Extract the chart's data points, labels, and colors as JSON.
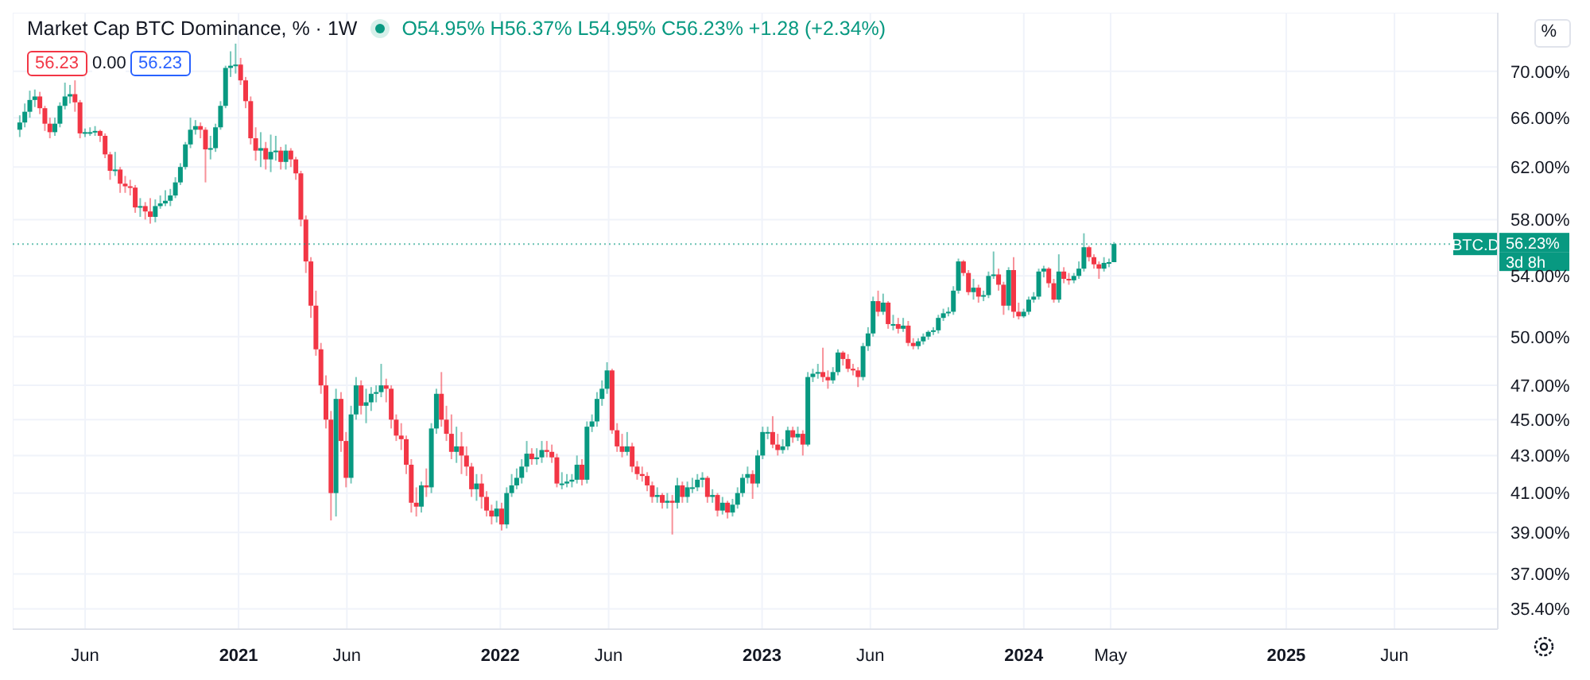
{
  "chart_data": {
    "type": "candlestick",
    "title": "Market Cap BTC Dominance, % · 1W",
    "subtitle": "O54.95% H56.37% L54.95% C56.23% +1.28 (+2.34%)",
    "annotations": [
      "56.23",
      "0.00",
      "56.23",
      "%",
      "56.23%",
      "3d 8h"
    ],
    "x": [
      "2020-03-02",
      "2020-03-09",
      "2020-03-16",
      "2020-03-23",
      "2020-03-30",
      "2020-04-06",
      "2020-04-13",
      "2020-04-20",
      "2020-04-27",
      "2020-05-04",
      "2020-05-11",
      "2020-05-18",
      "2020-05-25",
      "2020-06-01",
      "2020-06-08",
      "2020-06-15",
      "2020-06-22",
      "2020-06-29",
      "2020-07-06",
      "2020-07-13",
      "2020-07-20",
      "2020-07-27",
      "2020-08-03",
      "2020-08-10",
      "2020-08-17",
      "2020-08-24",
      "2020-08-31",
      "2020-09-07",
      "2020-09-14",
      "2020-09-21",
      "2020-09-28",
      "2020-10-05",
      "2020-10-12",
      "2020-10-19",
      "2020-10-26",
      "2020-11-02",
      "2020-11-09",
      "2020-11-16",
      "2020-11-23",
      "2020-11-30",
      "2020-12-07",
      "2020-12-14",
      "2020-12-21",
      "2020-12-28",
      "2021-01-04",
      "2021-01-11",
      "2021-01-18",
      "2021-01-25",
      "2021-02-01",
      "2021-02-08",
      "2021-02-15",
      "2021-02-22",
      "2021-03-01",
      "2021-03-08",
      "2021-03-15",
      "2021-03-22",
      "2021-03-29",
      "2021-04-05",
      "2021-04-12",
      "2021-04-19",
      "2021-04-26",
      "2021-05-03",
      "2021-05-10",
      "2021-05-17",
      "2021-05-24",
      "2021-05-31",
      "2021-06-07",
      "2021-06-14",
      "2021-06-21",
      "2021-06-28",
      "2021-07-05",
      "2021-07-12",
      "2021-07-19",
      "2021-07-26",
      "2021-08-02",
      "2021-08-09",
      "2021-08-16",
      "2021-08-23",
      "2021-08-30",
      "2021-09-06",
      "2021-09-13",
      "2021-09-20",
      "2021-09-27",
      "2021-10-04",
      "2021-10-11",
      "2021-10-18",
      "2021-10-25",
      "2021-11-01",
      "2021-11-08",
      "2021-11-15",
      "2021-11-22",
      "2021-11-29",
      "2021-12-06",
      "2021-12-13",
      "2021-12-20",
      "2021-12-27",
      "2022-01-03",
      "2022-01-10",
      "2022-01-17",
      "2022-01-24",
      "2022-01-31",
      "2022-02-07",
      "2022-02-14",
      "2022-02-21",
      "2022-02-28",
      "2022-03-07",
      "2022-03-14",
      "2022-03-21",
      "2022-03-28",
      "2022-04-04",
      "2022-04-11",
      "2022-04-18",
      "2022-04-25",
      "2022-05-02",
      "2022-05-09",
      "2022-05-16",
      "2022-05-23",
      "2022-05-30",
      "2022-06-06",
      "2022-06-13",
      "2022-06-20",
      "2022-06-27",
      "2022-07-04",
      "2022-07-11",
      "2022-07-18",
      "2022-07-25",
      "2022-08-01",
      "2022-08-08",
      "2022-08-15",
      "2022-08-22",
      "2022-08-29",
      "2022-09-05",
      "2022-09-12",
      "2022-09-19",
      "2022-09-26",
      "2022-10-03",
      "2022-10-10",
      "2022-10-17",
      "2022-10-24",
      "2022-10-31",
      "2022-11-07",
      "2022-11-14",
      "2022-11-21",
      "2022-11-28",
      "2022-12-05",
      "2022-12-12",
      "2022-12-19",
      "2022-12-26",
      "2023-01-02",
      "2023-01-09",
      "2023-01-16",
      "2023-01-23",
      "2023-01-30",
      "2023-02-06",
      "2023-02-13",
      "2023-02-20",
      "2023-02-27",
      "2023-03-06",
      "2023-03-13",
      "2023-03-20",
      "2023-03-27",
      "2023-04-03",
      "2023-04-10",
      "2023-04-17",
      "2023-04-24",
      "2023-05-01",
      "2023-05-08",
      "2023-05-15",
      "2023-05-22",
      "2023-05-29",
      "2023-06-05",
      "2023-06-12",
      "2023-06-19",
      "2023-06-26",
      "2023-07-03",
      "2023-07-10",
      "2023-07-17",
      "2023-07-24",
      "2023-07-31",
      "2023-08-07",
      "2023-08-14",
      "2023-08-21",
      "2023-08-28",
      "2023-09-04",
      "2023-09-11",
      "2023-09-18",
      "2023-09-25",
      "2023-10-02",
      "2023-10-09",
      "2023-10-16",
      "2023-10-23",
      "2023-10-30",
      "2023-11-06",
      "2023-11-13",
      "2023-11-20",
      "2023-11-27",
      "2023-12-04",
      "2023-12-11",
      "2023-12-18",
      "2023-12-25",
      "2024-01-01",
      "2024-01-08",
      "2024-01-15",
      "2024-01-22",
      "2024-01-29",
      "2024-02-05",
      "2024-02-12",
      "2024-02-19",
      "2024-02-26",
      "2024-03-04",
      "2024-03-11",
      "2024-03-18",
      "2024-03-25",
      "2024-04-01",
      "2024-04-08",
      "2024-04-15",
      "2024-04-22",
      "2024-04-29",
      "2024-05-06"
    ],
    "ohlc": [
      [
        65.0,
        66.2,
        64.4,
        65.6
      ],
      [
        65.6,
        67.2,
        65.2,
        66.5
      ],
      [
        66.5,
        68.3,
        66.0,
        67.5
      ],
      [
        67.5,
        68.4,
        66.9,
        67.8
      ],
      [
        67.8,
        68.2,
        66.3,
        66.8
      ],
      [
        66.8,
        67.0,
        64.9,
        65.5
      ],
      [
        65.5,
        66.0,
        64.3,
        64.8
      ],
      [
        64.8,
        66.0,
        64.5,
        65.5
      ],
      [
        65.5,
        67.3,
        65.2,
        67.0
      ],
      [
        67.0,
        69.0,
        66.7,
        67.8
      ],
      [
        67.8,
        68.8,
        67.2,
        68.0
      ],
      [
        68.0,
        69.2,
        66.5,
        67.3
      ],
      [
        67.3,
        67.5,
        64.3,
        64.7
      ],
      [
        64.7,
        65.1,
        64.4,
        64.8
      ],
      [
        64.8,
        65.2,
        64.5,
        64.8
      ],
      [
        64.8,
        65.3,
        64.5,
        64.9
      ],
      [
        64.9,
        65.0,
        64.0,
        64.5
      ],
      [
        64.5,
        64.7,
        62.7,
        63.0
      ],
      [
        63.0,
        63.2,
        61.0,
        61.7
      ],
      [
        61.7,
        63.2,
        61.3,
        61.8
      ],
      [
        61.8,
        62.0,
        60.0,
        60.7
      ],
      [
        60.7,
        61.3,
        60.0,
        60.5
      ],
      [
        60.5,
        61.0,
        59.8,
        60.4
      ],
      [
        60.4,
        60.6,
        58.5,
        58.9
      ],
      [
        58.9,
        59.6,
        58.2,
        59.0
      ],
      [
        59.0,
        59.3,
        58.0,
        58.6
      ],
      [
        58.6,
        59.6,
        57.7,
        58.2
      ],
      [
        58.2,
        59.5,
        57.8,
        59.0
      ],
      [
        59.0,
        59.8,
        58.8,
        59.2
      ],
      [
        59.2,
        60.2,
        59.0,
        59.4
      ],
      [
        59.4,
        60.3,
        59.0,
        59.8
      ],
      [
        59.8,
        61.2,
        59.6,
        60.8
      ],
      [
        60.8,
        62.3,
        60.6,
        62.0
      ],
      [
        62.0,
        64.0,
        61.8,
        63.8
      ],
      [
        63.8,
        66.0,
        63.5,
        65.0
      ],
      [
        65.0,
        65.8,
        64.6,
        65.3
      ],
      [
        65.3,
        65.6,
        64.3,
        65.0
      ],
      [
        65.0,
        65.2,
        60.8,
        63.4
      ],
      [
        63.4,
        64.5,
        62.6,
        63.5
      ],
      [
        63.5,
        65.5,
        63.2,
        65.2
      ],
      [
        65.2,
        67.4,
        65.0,
        67.0
      ],
      [
        67.0,
        70.5,
        66.8,
        70.3
      ],
      [
        70.3,
        71.8,
        69.5,
        70.5
      ],
      [
        70.5,
        72.5,
        69.8,
        70.6
      ],
      [
        70.6,
        71.2,
        68.8,
        69.2
      ],
      [
        69.2,
        69.5,
        66.8,
        67.4
      ],
      [
        67.4,
        67.8,
        63.8,
        64.3
      ],
      [
        64.3,
        65.2,
        62.5,
        63.3
      ],
      [
        63.3,
        64.8,
        62.0,
        63.5
      ],
      [
        63.5,
        64.0,
        61.8,
        62.6
      ],
      [
        62.6,
        64.6,
        61.6,
        63.2
      ],
      [
        63.2,
        64.5,
        62.5,
        63.3
      ],
      [
        63.3,
        63.6,
        61.8,
        62.4
      ],
      [
        62.4,
        63.8,
        61.8,
        63.3
      ],
      [
        63.3,
        63.5,
        62.0,
        62.6
      ],
      [
        62.6,
        62.8,
        61.0,
        61.5
      ],
      [
        61.5,
        61.7,
        57.5,
        58.0
      ],
      [
        58.0,
        58.3,
        54.2,
        55.0
      ],
      [
        55.0,
        55.3,
        51.2,
        52.0
      ],
      [
        52.0,
        53.0,
        48.8,
        49.2
      ],
      [
        49.2,
        49.6,
        46.5,
        47.0
      ],
      [
        47.0,
        47.6,
        44.5,
        45.0
      ],
      [
        45.0,
        45.5,
        39.6,
        41.0
      ],
      [
        41.0,
        46.8,
        39.8,
        46.2
      ],
      [
        46.2,
        46.6,
        43.2,
        43.8
      ],
      [
        43.8,
        44.3,
        41.3,
        41.8
      ],
      [
        41.8,
        45.8,
        41.5,
        45.3
      ],
      [
        45.3,
        47.5,
        45.0,
        47.0
      ],
      [
        47.0,
        47.3,
        45.3,
        45.8
      ],
      [
        45.8,
        46.8,
        44.8,
        46.0
      ],
      [
        46.0,
        46.9,
        45.5,
        46.5
      ],
      [
        46.5,
        47.0,
        46.0,
        46.6
      ],
      [
        46.6,
        48.3,
        46.3,
        47.0
      ],
      [
        47.0,
        47.4,
        46.0,
        46.8
      ],
      [
        46.8,
        47.0,
        44.5,
        45.0
      ],
      [
        45.0,
        45.3,
        43.8,
        44.1
      ],
      [
        44.1,
        44.8,
        43.3,
        43.9
      ],
      [
        43.9,
        44.1,
        42.0,
        42.5
      ],
      [
        42.5,
        42.8,
        40.0,
        40.5
      ],
      [
        40.5,
        41.3,
        39.8,
        40.3
      ],
      [
        40.3,
        41.6,
        40.0,
        41.4
      ],
      [
        41.4,
        42.3,
        40.8,
        41.3
      ],
      [
        41.3,
        44.8,
        41.0,
        44.5
      ],
      [
        44.5,
        46.8,
        44.2,
        46.5
      ],
      [
        46.5,
        47.8,
        44.6,
        45.0
      ],
      [
        45.0,
        45.8,
        43.8,
        44.2
      ],
      [
        44.2,
        45.3,
        42.8,
        43.2
      ],
      [
        43.2,
        44.6,
        42.6,
        43.5
      ],
      [
        43.5,
        44.3,
        42.0,
        43.0
      ],
      [
        43.0,
        43.5,
        41.9,
        42.4
      ],
      [
        42.4,
        42.6,
        40.8,
        41.2
      ],
      [
        41.2,
        42.0,
        40.6,
        41.5
      ],
      [
        41.5,
        42.0,
        40.2,
        40.8
      ],
      [
        40.8,
        41.1,
        39.8,
        40.1
      ],
      [
        40.1,
        40.4,
        39.4,
        39.8
      ],
      [
        39.8,
        40.6,
        39.5,
        40.2
      ],
      [
        40.2,
        40.5,
        39.1,
        39.4
      ],
      [
        39.4,
        41.3,
        39.2,
        41.0
      ],
      [
        41.0,
        42.0,
        40.8,
        41.4
      ],
      [
        41.4,
        42.3,
        41.2,
        41.8
      ],
      [
        41.8,
        42.8,
        41.5,
        42.4
      ],
      [
        42.4,
        43.8,
        42.1,
        43.1
      ],
      [
        43.1,
        43.4,
        42.5,
        42.8
      ],
      [
        42.8,
        43.4,
        42.5,
        42.9
      ],
      [
        42.9,
        43.8,
        42.6,
        43.3
      ],
      [
        43.3,
        43.8,
        42.9,
        43.2
      ],
      [
        43.2,
        43.6,
        42.6,
        42.9
      ],
      [
        42.9,
        43.1,
        41.3,
        41.5
      ],
      [
        41.5,
        42.1,
        41.2,
        41.5
      ],
      [
        41.5,
        42.0,
        41.3,
        41.6
      ],
      [
        41.6,
        42.0,
        41.3,
        41.7
      ],
      [
        41.7,
        43.0,
        41.5,
        42.5
      ],
      [
        42.5,
        42.8,
        41.4,
        41.7
      ],
      [
        41.7,
        44.9,
        41.5,
        44.6
      ],
      [
        44.6,
        45.3,
        44.3,
        44.9
      ],
      [
        44.9,
        46.6,
        44.6,
        46.2
      ],
      [
        46.2,
        47.3,
        45.8,
        46.8
      ],
      [
        46.8,
        48.4,
        46.5,
        47.9
      ],
      [
        47.9,
        48.0,
        44.2,
        44.4
      ],
      [
        44.4,
        44.8,
        43.2,
        43.5
      ],
      [
        43.5,
        44.2,
        42.9,
        43.2
      ],
      [
        43.2,
        44.3,
        43.0,
        43.5
      ],
      [
        43.5,
        43.7,
        42.1,
        42.4
      ],
      [
        42.4,
        42.7,
        41.7,
        42.0
      ],
      [
        42.0,
        42.4,
        41.6,
        41.9
      ],
      [
        41.9,
        42.1,
        41.1,
        41.4
      ],
      [
        41.4,
        41.6,
        40.5,
        40.8
      ],
      [
        40.8,
        41.3,
        40.5,
        40.9
      ],
      [
        40.9,
        41.0,
        40.2,
        40.5
      ],
      [
        40.5,
        41.0,
        40.2,
        40.6
      ],
      [
        40.6,
        40.9,
        38.9,
        40.5
      ],
      [
        40.5,
        41.8,
        40.2,
        41.4
      ],
      [
        41.4,
        41.6,
        40.5,
        40.8
      ],
      [
        40.8,
        41.6,
        40.5,
        41.3
      ],
      [
        41.3,
        41.8,
        41.0,
        41.3
      ],
      [
        41.3,
        42.0,
        41.1,
        41.7
      ],
      [
        41.7,
        42.1,
        41.3,
        41.8
      ],
      [
        41.8,
        41.9,
        40.5,
        40.8
      ],
      [
        40.8,
        41.2,
        40.5,
        40.9
      ],
      [
        40.9,
        41.0,
        39.8,
        40.1
      ],
      [
        40.1,
        40.8,
        39.9,
        40.5
      ],
      [
        40.5,
        40.6,
        39.7,
        40.0
      ],
      [
        40.0,
        40.7,
        39.8,
        40.4
      ],
      [
        40.4,
        41.3,
        40.2,
        41.0
      ],
      [
        41.0,
        42.0,
        40.8,
        41.8
      ],
      [
        41.8,
        42.4,
        41.5,
        42.0
      ],
      [
        42.0,
        42.2,
        40.7,
        41.5
      ],
      [
        41.5,
        43.3,
        41.3,
        43.0
      ],
      [
        43.0,
        44.6,
        42.8,
        44.3
      ],
      [
        44.3,
        44.6,
        43.9,
        44.3
      ],
      [
        44.3,
        45.2,
        43.4,
        43.6
      ],
      [
        43.6,
        44.2,
        43.0,
        43.3
      ],
      [
        43.3,
        43.9,
        43.1,
        43.5
      ],
      [
        43.5,
        44.6,
        43.3,
        44.4
      ],
      [
        44.4,
        44.6,
        43.7,
        44.0
      ],
      [
        44.0,
        44.6,
        43.8,
        44.2
      ],
      [
        44.2,
        44.4,
        43.0,
        43.6
      ],
      [
        43.6,
        47.8,
        43.5,
        47.5
      ],
      [
        47.5,
        48.0,
        47.2,
        47.7
      ],
      [
        47.7,
        48.3,
        47.4,
        47.8
      ],
      [
        47.8,
        49.3,
        47.2,
        47.5
      ],
      [
        47.5,
        47.9,
        46.8,
        47.3
      ],
      [
        47.3,
        48.1,
        47.1,
        47.8
      ],
      [
        47.8,
        49.2,
        47.6,
        49.0
      ],
      [
        49.0,
        49.1,
        48.2,
        48.6
      ],
      [
        48.6,
        48.9,
        47.8,
        48.0
      ],
      [
        48.0,
        48.3,
        47.6,
        47.9
      ],
      [
        47.9,
        48.1,
        46.9,
        47.5
      ],
      [
        47.5,
        49.6,
        47.3,
        49.4
      ],
      [
        49.4,
        50.6,
        49.1,
        50.2
      ],
      [
        50.2,
        52.6,
        50.0,
        52.3
      ],
      [
        52.3,
        53.0,
        51.3,
        51.6
      ],
      [
        51.6,
        52.8,
        51.4,
        52.2
      ],
      [
        52.2,
        52.3,
        50.5,
        50.8
      ],
      [
        50.8,
        51.4,
        50.4,
        50.8
      ],
      [
        50.8,
        51.2,
        50.2,
        50.5
      ],
      [
        50.5,
        51.2,
        50.3,
        50.7
      ],
      [
        50.7,
        51.0,
        49.4,
        49.6
      ],
      [
        49.6,
        49.9,
        49.2,
        49.4
      ],
      [
        49.4,
        49.9,
        49.2,
        49.7
      ],
      [
        49.7,
        50.2,
        49.5,
        50.0
      ],
      [
        50.0,
        50.4,
        49.8,
        50.3
      ],
      [
        50.3,
        50.6,
        50.1,
        50.4
      ],
      [
        50.4,
        51.4,
        50.2,
        51.2
      ],
      [
        51.2,
        51.8,
        51.0,
        51.5
      ],
      [
        51.5,
        51.9,
        51.3,
        51.6
      ],
      [
        51.6,
        53.3,
        51.4,
        53.0
      ],
      [
        53.0,
        55.2,
        52.8,
        55.0
      ],
      [
        55.0,
        55.1,
        54.0,
        54.2
      ],
      [
        54.2,
        54.4,
        52.7,
        52.9
      ],
      [
        52.9,
        53.8,
        52.4,
        53.2
      ],
      [
        53.2,
        53.4,
        52.2,
        52.6
      ],
      [
        52.6,
        53.0,
        52.3,
        52.7
      ],
      [
        52.7,
        54.3,
        52.5,
        54.0
      ],
      [
        54.0,
        55.7,
        53.8,
        54.1
      ],
      [
        54.1,
        54.5,
        53.0,
        53.4
      ],
      [
        53.4,
        53.6,
        51.4,
        52.0
      ],
      [
        52.0,
        54.6,
        51.7,
        54.4
      ],
      [
        54.4,
        55.3,
        51.2,
        51.6
      ],
      [
        51.6,
        52.2,
        51.1,
        51.3
      ],
      [
        51.3,
        51.8,
        51.2,
        51.6
      ],
      [
        51.6,
        52.6,
        51.4,
        52.4
      ],
      [
        52.4,
        52.9,
        52.2,
        52.6
      ],
      [
        52.6,
        54.5,
        52.4,
        54.3
      ],
      [
        54.3,
        54.7,
        53.9,
        54.5
      ],
      [
        54.5,
        54.6,
        53.2,
        53.5
      ],
      [
        53.5,
        53.8,
        52.2,
        52.4
      ],
      [
        52.4,
        55.5,
        52.2,
        54.3
      ],
      [
        54.3,
        54.6,
        53.5,
        53.8
      ],
      [
        53.8,
        54.2,
        53.4,
        53.7
      ],
      [
        53.7,
        54.2,
        53.5,
        54.0
      ],
      [
        54.0,
        55.0,
        53.8,
        54.5
      ],
      [
        54.5,
        57.0,
        54.3,
        56.0
      ],
      [
        56.0,
        56.1,
        55.0,
        55.3
      ],
      [
        55.3,
        55.5,
        54.5,
        54.8
      ],
      [
        54.8,
        55.0,
        53.8,
        54.5
      ],
      [
        54.5,
        55.3,
        54.3,
        54.9
      ],
      [
        54.9,
        55.2,
        54.6,
        54.95
      ],
      [
        54.95,
        56.37,
        54.95,
        56.23
      ]
    ],
    "xlim": [
      "2020-02-21",
      "2025-10-23"
    ],
    "xticks": [
      {
        "value": "2020-06-01",
        "label": "Jun"
      },
      {
        "value": "2021-01-01",
        "label": "2021"
      },
      {
        "value": "2021-06-01",
        "label": "Jun"
      },
      {
        "value": "2022-01-01",
        "label": "2022"
      },
      {
        "value": "2022-06-01",
        "label": "Jun"
      },
      {
        "value": "2023-01-01",
        "label": "2023"
      },
      {
        "value": "2023-06-01",
        "label": "Jun"
      },
      {
        "value": "2024-01-01",
        "label": "2024"
      },
      {
        "value": "2024-05-01",
        "label": "May"
      },
      {
        "value": "2025-01-01",
        "label": "2025"
      },
      {
        "value": "2025-06-01",
        "label": "Jun"
      }
    ],
    "ylim": [
      34.5,
      75.4
    ],
    "yticks": [
      {
        "value": 35.4,
        "label": "35.40%"
      },
      {
        "value": 37,
        "label": "37.00%"
      },
      {
        "value": 39,
        "label": "39.00%"
      },
      {
        "value": 41,
        "label": "41.00%"
      },
      {
        "value": 43,
        "label": "43.00%"
      },
      {
        "value": 45,
        "label": "45.00%"
      },
      {
        "value": 47,
        "label": "47.00%"
      },
      {
        "value": 50,
        "label": "50.00%"
      },
      {
        "value": 54,
        "label": "54.00%"
      },
      {
        "value": 58,
        "label": "58.00%"
      },
      {
        "value": 62,
        "label": "62.00%"
      },
      {
        "value": 66,
        "label": "66.00%"
      },
      {
        "value": 70,
        "label": "70.00%"
      }
    ],
    "log": "y",
    "grid": true,
    "ref_lines": [
      {
        "axis": "y",
        "value": 56.23,
        "label": "BTC.D",
        "color": "#089981",
        "line_style": "dotted"
      }
    ]
  }
}
